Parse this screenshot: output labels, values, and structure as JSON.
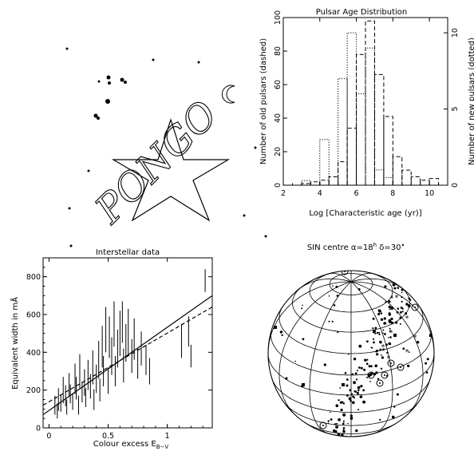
{
  "logo": {
    "text": "PONGO",
    "icon": "star-and-crescent-logo"
  },
  "chart_data": [
    {
      "type": "histogram",
      "title": "Pulsar Age Distribution",
      "xlabel": "Log [Characteristic age (yr)]",
      "ylabel_left": "Number of old pulsars (dashed)",
      "ylabel_right": "Number of new pulsars (dotted)",
      "xlim": [
        2,
        11
      ],
      "ylim_left": [
        0,
        100
      ],
      "ylim_right": [
        0,
        11
      ],
      "xticks": [
        "2",
        "4",
        "6",
        "8",
        "10"
      ],
      "yticks_left": [
        "0",
        "20",
        "40",
        "60",
        "80",
        "100"
      ],
      "yticks_right": [
        "0",
        "5",
        "10"
      ],
      "bin_width": 0.5,
      "series": [
        {
          "style": "dashed",
          "axis": "left",
          "bins": [
            [
              3.0,
              1
            ],
            [
              3.5,
              2
            ],
            [
              4.0,
              3
            ],
            [
              4.5,
              5
            ],
            [
              5.0,
              14
            ],
            [
              5.5,
              34
            ],
            [
              6.0,
              78
            ],
            [
              6.5,
              98
            ],
            [
              7.0,
              66
            ],
            [
              7.5,
              41
            ],
            [
              8.0,
              17
            ],
            [
              8.5,
              9
            ],
            [
              9.0,
              5
            ],
            [
              9.5,
              3
            ],
            [
              10.0,
              4
            ]
          ]
        },
        {
          "style": "dotted",
          "axis": "right",
          "bins": [
            [
              3.0,
              0.3
            ],
            [
              4.0,
              3
            ],
            [
              5.0,
              7
            ],
            [
              5.5,
              10
            ],
            [
              6.0,
              6
            ],
            [
              6.5,
              9
            ],
            [
              7.0,
              1
            ],
            [
              7.5,
              0.5
            ]
          ]
        }
      ]
    },
    {
      "type": "scatter",
      "title": "Interstellar data",
      "xlabel": "Colour excess E",
      "xlabel_sub": "B−V",
      "ylabel": "Equivalent width in mÅ",
      "xlim": [
        -0.05,
        1.38
      ],
      "ylim": [
        0,
        900
      ],
      "xticks": [
        "0",
        "0.5",
        "1"
      ],
      "yticks": [
        "0",
        "200",
        "400",
        "600",
        "800"
      ],
      "points_with_errorbars": [
        [
          0.05,
          120,
          50
        ],
        [
          0.07,
          90,
          40
        ],
        [
          0.08,
          150,
          60
        ],
        [
          0.1,
          130,
          45
        ],
        [
          0.12,
          200,
          70
        ],
        [
          0.14,
          170,
          55
        ],
        [
          0.15,
          110,
          40
        ],
        [
          0.17,
          230,
          60
        ],
        [
          0.18,
          180,
          50
        ],
        [
          0.2,
          140,
          45
        ],
        [
          0.22,
          260,
          80
        ],
        [
          0.23,
          210,
          60
        ],
        [
          0.25,
          120,
          50
        ],
        [
          0.26,
          300,
          90
        ],
        [
          0.28,
          190,
          55
        ],
        [
          0.3,
          240,
          70
        ],
        [
          0.31,
          160,
          50
        ],
        [
          0.33,
          280,
          80
        ],
        [
          0.35,
          220,
          65
        ],
        [
          0.37,
          320,
          90
        ],
        [
          0.38,
          150,
          55
        ],
        [
          0.4,
          260,
          75
        ],
        [
          0.42,
          360,
          100
        ],
        [
          0.43,
          200,
          60
        ],
        [
          0.45,
          430,
          110
        ],
        [
          0.46,
          300,
          80
        ],
        [
          0.48,
          520,
          120
        ],
        [
          0.5,
          250,
          70
        ],
        [
          0.51,
          480,
          110
        ],
        [
          0.53,
          380,
          100
        ],
        [
          0.55,
          550,
          120
        ],
        [
          0.56,
          300,
          80
        ],
        [
          0.58,
          420,
          100
        ],
        [
          0.6,
          500,
          120
        ],
        [
          0.62,
          560,
          110
        ],
        [
          0.63,
          330,
          90
        ],
        [
          0.65,
          450,
          100
        ],
        [
          0.67,
          510,
          120
        ],
        [
          0.7,
          380,
          90
        ],
        [
          0.72,
          470,
          110
        ],
        [
          0.75,
          340,
          80
        ],
        [
          0.78,
          420,
          90
        ],
        [
          0.82,
          360,
          80
        ],
        [
          0.85,
          300,
          70
        ],
        [
          1.12,
          460,
          90
        ],
        [
          1.18,
          510,
          80
        ],
        [
          1.2,
          380,
          60
        ],
        [
          1.32,
          780,
          60
        ]
      ],
      "series": [
        {
          "style": "solid",
          "x": [
            -0.05,
            1.38
          ],
          "y": [
            70,
            700
          ]
        },
        {
          "style": "dashed",
          "x": [
            -0.05,
            1.38
          ],
          "y": [
            120,
            640
          ]
        }
      ]
    },
    {
      "type": "map",
      "projection": "SIN",
      "title": "SIN centre α=18h δ=30°",
      "title_prefix": "SIN centre α=18",
      "title_sup": "h",
      "title_suffix": " δ=30",
      "title_degree": "•"
    }
  ]
}
